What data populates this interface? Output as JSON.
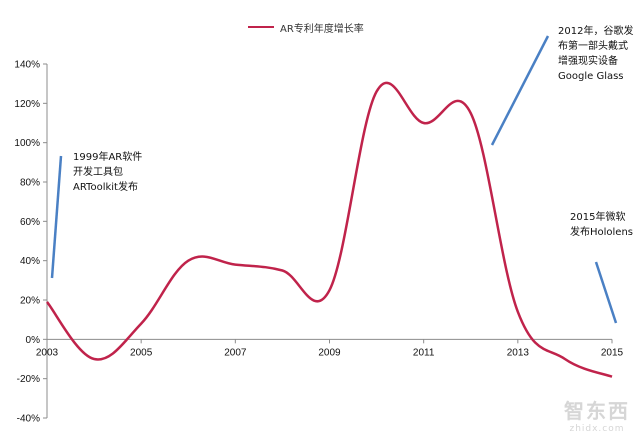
{
  "chart_data": {
    "type": "line",
    "legend": "AR专利年度增长率",
    "x_ticks": [
      "2003",
      "2005",
      "2007",
      "2009",
      "2011",
      "2013",
      "2015"
    ],
    "y_ticks": [
      "140%",
      "120%",
      "100%",
      "80%",
      "60%",
      "40%",
      "20%",
      "0%",
      "-20%",
      "-40%"
    ],
    "ylim": [
      -40,
      140
    ],
    "xlim": [
      2003,
      2015
    ],
    "grid": false,
    "series": [
      {
        "name": "AR专利年度增长率",
        "color": "#c0234b",
        "x": [
          2003,
          2004,
          2005,
          2006,
          2007,
          2008,
          2009,
          2010,
          2011,
          2012,
          2013,
          2014,
          2015
        ],
        "values": [
          19,
          -10,
          8,
          40,
          38,
          35,
          25,
          126,
          110,
          115,
          14,
          -10,
          -19
        ]
      }
    ],
    "annotations": [
      {
        "lines": [
          "1999年AR软件",
          "开发工具包",
          "ARToolkit发布"
        ]
      },
      {
        "lines": [
          "2012年，谷歌发",
          "布第一部头戴式",
          "增强现实设备",
          "Google Glass"
        ]
      },
      {
        "lines": [
          "2015年微软",
          "发布Hololens"
        ]
      }
    ],
    "annotation_line_color": "#4a80c4"
  },
  "watermark": {
    "logo": "智东西",
    "url": "zhidx.com"
  }
}
